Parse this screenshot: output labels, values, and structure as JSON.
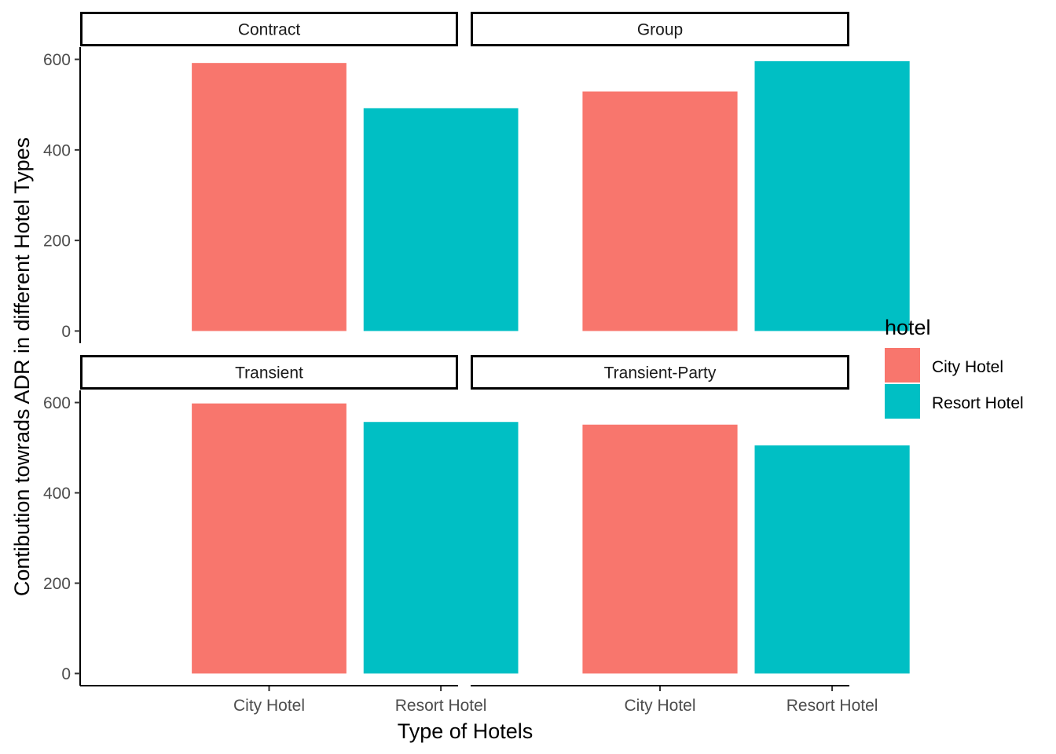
{
  "chart_data": {
    "type": "bar",
    "facets": [
      {
        "name": "Contract",
        "categories": [
          "City Hotel",
          "Resort Hotel"
        ],
        "values": [
          592,
          492
        ]
      },
      {
        "name": "Group",
        "categories": [
          "City Hotel",
          "Resort Hotel"
        ],
        "values": [
          529,
          596
        ]
      },
      {
        "name": "Transient",
        "categories": [
          "City Hotel",
          "Resort Hotel"
        ],
        "values": [
          598,
          557
        ]
      },
      {
        "name": "Transient-Party",
        "categories": [
          "City Hotel",
          "Resort Hotel"
        ],
        "values": [
          551,
          505
        ]
      }
    ],
    "xlabel": "Type of Hotels",
    "ylabel": "Contibution towrads ADR in different Hotel Types",
    "ylim": [
      0,
      600
    ],
    "yticks": [
      0,
      200,
      400,
      600
    ],
    "grid": false,
    "legend": {
      "title": "hotel",
      "placement": "right",
      "entries": [
        {
          "label": "City Hotel",
          "color": "#F8766D"
        },
        {
          "label": "Resort Hotel",
          "color": "#00BFC4"
        }
      ]
    }
  }
}
